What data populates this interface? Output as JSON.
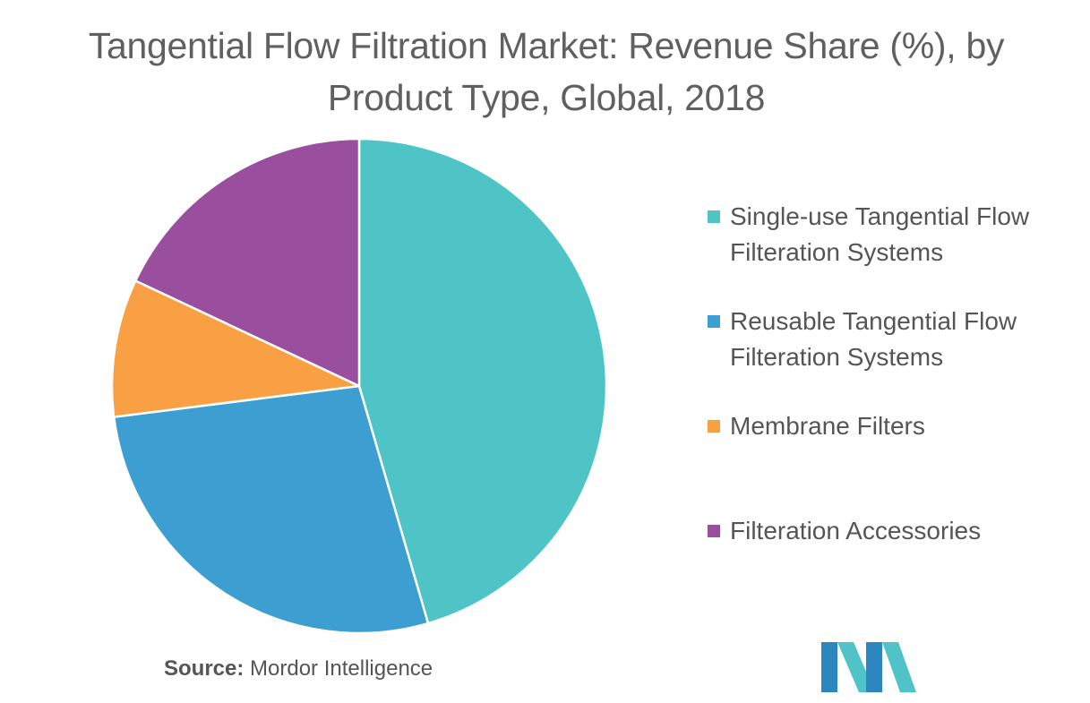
{
  "title": "Tangential Flow Filtration Market: Revenue Share (%), by Product Type, Global, 2018",
  "source": {
    "label": "Source:",
    "text": "Mordor Intelligence"
  },
  "logo": {
    "name": "mordor-intelligence-logo",
    "colors": [
      "#2e86c1",
      "#4fc3c7"
    ]
  },
  "chart_data": {
    "type": "pie",
    "title": "Tangential Flow Filtration Market: Revenue Share (%), by Product Type, Global, 2018",
    "start_angle_deg": 0,
    "direction": "clockwise",
    "legend_position": "right",
    "categories": [
      "Single-use Tangential Flow Filteration Systems",
      "Reusable Tangential Flow Filteration Systems",
      "Membrane Filters",
      "Filteration Accessories"
    ],
    "values": [
      45.5,
      27.5,
      9.0,
      18.0
    ],
    "colors": [
      "#4fc4c7",
      "#3d9fd1",
      "#f9a045",
      "#9a4f9e"
    ]
  }
}
